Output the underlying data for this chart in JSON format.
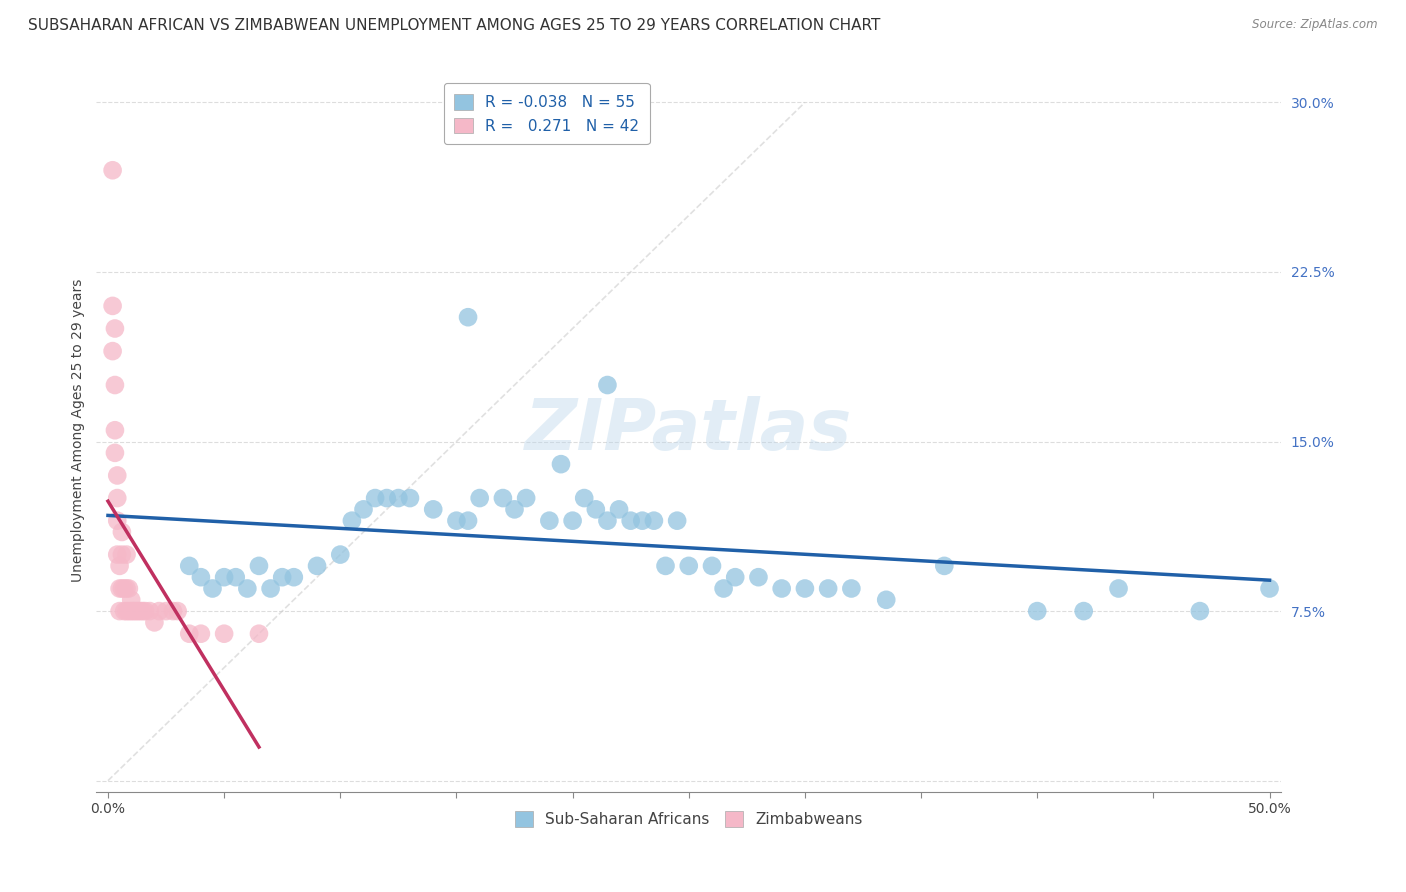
{
  "title": "SUBSAHARAN AFRICAN VS ZIMBABWEAN UNEMPLOYMENT AMONG AGES 25 TO 29 YEARS CORRELATION CHART",
  "source": "Source: ZipAtlas.com",
  "ylabel": "Unemployment Among Ages 25 to 29 years",
  "xlim": [
    -0.005,
    0.505
  ],
  "ylim": [
    -0.005,
    0.315
  ],
  "xticks": [
    0.0,
    0.05,
    0.1,
    0.15,
    0.2,
    0.25,
    0.3,
    0.35,
    0.4,
    0.45,
    0.5
  ],
  "xticklabels": [
    "0.0%",
    "",
    "",
    "",
    "",
    "",
    "",
    "",
    "",
    "",
    "50.0%"
  ],
  "yticks": [
    0.0,
    0.075,
    0.15,
    0.225,
    0.3
  ],
  "yticklabels": [
    "",
    "7.5%",
    "15.0%",
    "22.5%",
    "30.0%"
  ],
  "watermark": "ZIPatlas",
  "color_blue": "#93c4e0",
  "color_pink": "#f5b8c8",
  "color_line_blue": "#2060a8",
  "color_line_pink": "#c03060",
  "color_trendline": "#cccccc",
  "background_color": "#ffffff",
  "blue_scatter_x": [
    0.035,
    0.04,
    0.045,
    0.05,
    0.055,
    0.06,
    0.065,
    0.07,
    0.075,
    0.08,
    0.09,
    0.1,
    0.105,
    0.11,
    0.115,
    0.12,
    0.125,
    0.13,
    0.14,
    0.15,
    0.155,
    0.16,
    0.17,
    0.175,
    0.18,
    0.19,
    0.2,
    0.205,
    0.21,
    0.215,
    0.22,
    0.225,
    0.23,
    0.235,
    0.24,
    0.245,
    0.25,
    0.26,
    0.265,
    0.27,
    0.28,
    0.3,
    0.32,
    0.335,
    0.36,
    0.4,
    0.42,
    0.435,
    0.47,
    0.5,
    0.29,
    0.31,
    0.195,
    0.155,
    0.215
  ],
  "blue_scatter_y": [
    0.095,
    0.09,
    0.085,
    0.09,
    0.09,
    0.085,
    0.095,
    0.085,
    0.09,
    0.09,
    0.095,
    0.1,
    0.115,
    0.12,
    0.125,
    0.125,
    0.125,
    0.125,
    0.12,
    0.115,
    0.115,
    0.125,
    0.125,
    0.12,
    0.125,
    0.115,
    0.115,
    0.125,
    0.12,
    0.115,
    0.12,
    0.115,
    0.115,
    0.115,
    0.095,
    0.115,
    0.095,
    0.095,
    0.085,
    0.09,
    0.09,
    0.085,
    0.085,
    0.08,
    0.095,
    0.075,
    0.075,
    0.085,
    0.075,
    0.085,
    0.085,
    0.085,
    0.14,
    0.205,
    0.175
  ],
  "pink_scatter_x": [
    0.002,
    0.002,
    0.002,
    0.003,
    0.003,
    0.003,
    0.003,
    0.004,
    0.004,
    0.004,
    0.004,
    0.005,
    0.005,
    0.005,
    0.006,
    0.006,
    0.006,
    0.007,
    0.007,
    0.008,
    0.008,
    0.008,
    0.009,
    0.009,
    0.01,
    0.01,
    0.011,
    0.012,
    0.013,
    0.014,
    0.015,
    0.016,
    0.018,
    0.02,
    0.022,
    0.025,
    0.028,
    0.03,
    0.035,
    0.04,
    0.05,
    0.065
  ],
  "pink_scatter_y": [
    0.27,
    0.21,
    0.19,
    0.2,
    0.175,
    0.155,
    0.145,
    0.135,
    0.125,
    0.115,
    0.1,
    0.095,
    0.085,
    0.075,
    0.11,
    0.1,
    0.085,
    0.085,
    0.075,
    0.1,
    0.085,
    0.075,
    0.085,
    0.075,
    0.08,
    0.075,
    0.075,
    0.075,
    0.075,
    0.075,
    0.075,
    0.075,
    0.075,
    0.07,
    0.075,
    0.075,
    0.075,
    0.075,
    0.065,
    0.065,
    0.065,
    0.065
  ],
  "grid_color": "#dddddd",
  "title_fontsize": 11,
  "axis_fontsize": 10,
  "tick_fontsize": 10
}
